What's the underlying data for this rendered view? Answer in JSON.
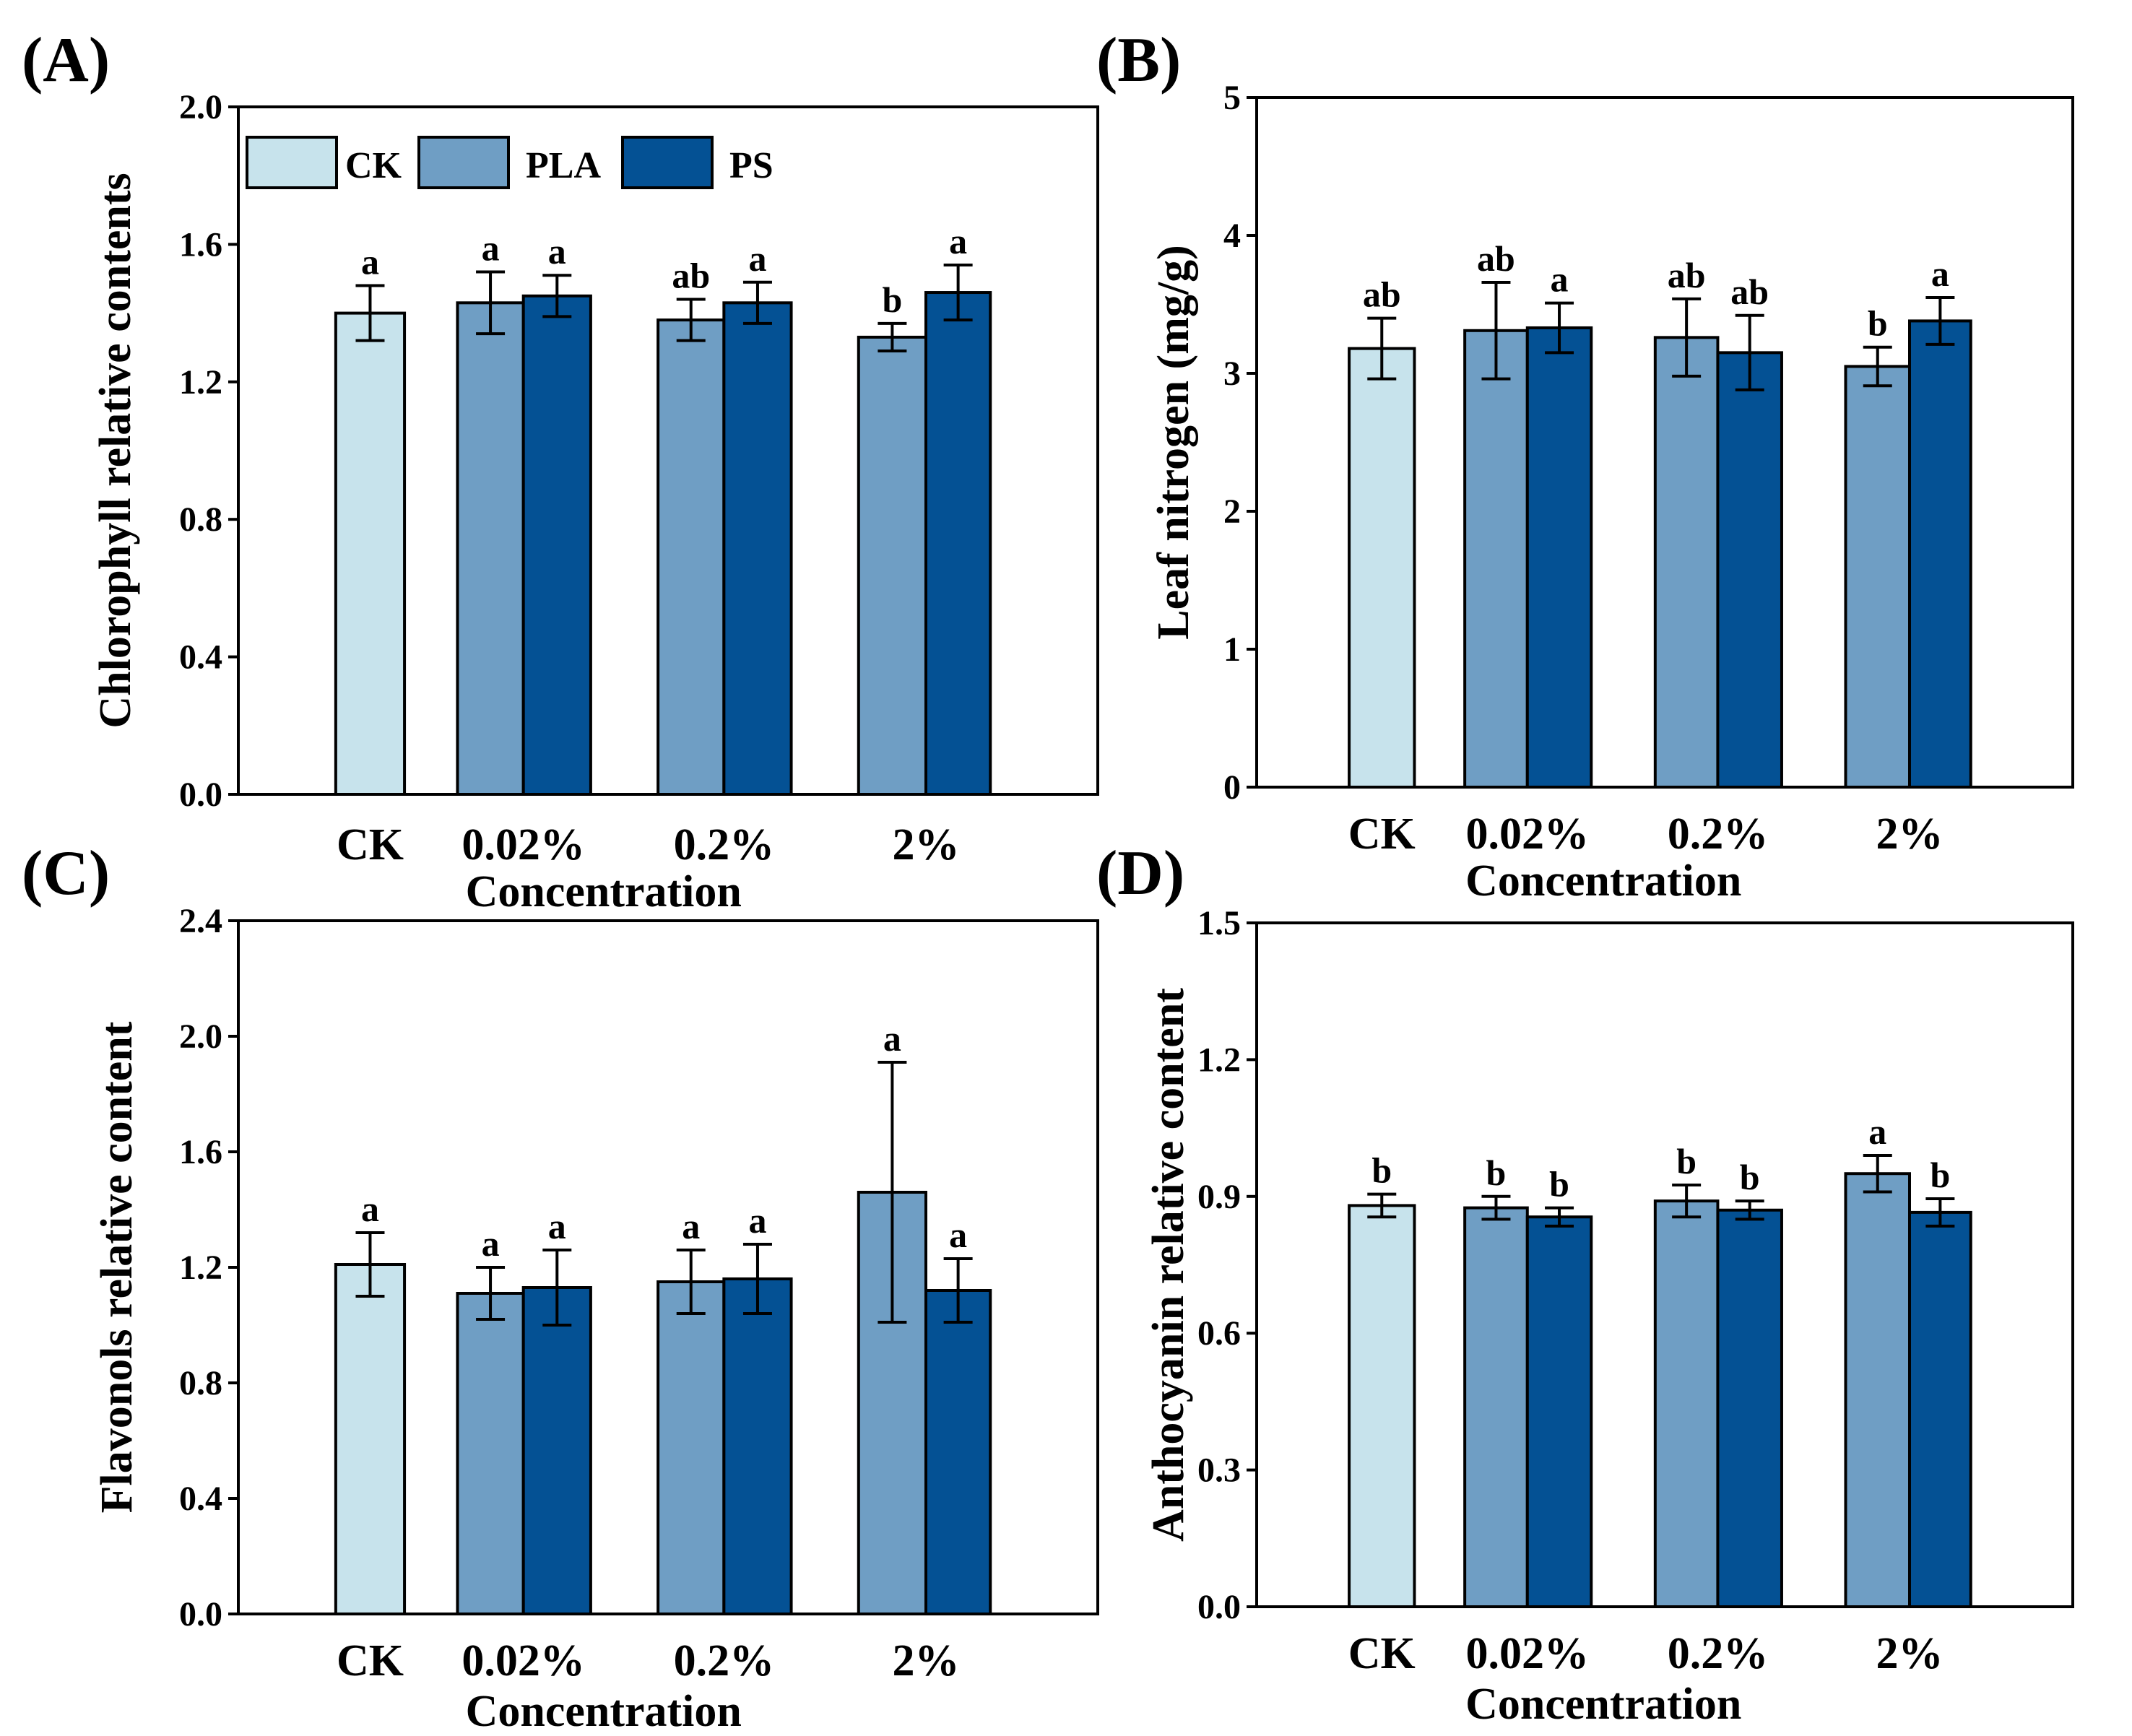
{
  "colors": {
    "CK": "#c7e3ec",
    "PLA": "#6f9ec4",
    "PS": "#045194"
  },
  "legend": {
    "entries": [
      "CK",
      "PLA",
      "PS"
    ]
  },
  "chart_data": [
    {
      "panel": "(A)",
      "type": "bar",
      "ylabel": "Chlorophyll relative contents",
      "xlabel": "Concentration",
      "ylim": [
        0.0,
        2.0
      ],
      "yticks": [
        "0.0",
        "0.4",
        "0.8",
        "1.2",
        "1.6",
        "2.0"
      ],
      "categories": [
        "CK",
        "0.02%",
        "0.2%",
        "2%"
      ],
      "legend_position": "top-left",
      "bars": [
        {
          "series": "CK",
          "category": "CK",
          "value": 1.4,
          "error": 0.08,
          "sig": "a"
        },
        {
          "series": "PLA",
          "category": "0.02%",
          "value": 1.43,
          "error": 0.09,
          "sig": "a"
        },
        {
          "series": "PS",
          "category": "0.02%",
          "value": 1.45,
          "error": 0.06,
          "sig": "a"
        },
        {
          "series": "PLA",
          "category": "0.2%",
          "value": 1.38,
          "error": 0.06,
          "sig": "ab"
        },
        {
          "series": "PS",
          "category": "0.2%",
          "value": 1.43,
          "error": 0.06,
          "sig": "a"
        },
        {
          "series": "PLA",
          "category": "2%",
          "value": 1.33,
          "error": 0.04,
          "sig": "b"
        },
        {
          "series": "PS",
          "category": "2%",
          "value": 1.46,
          "error": 0.08,
          "sig": "a"
        }
      ]
    },
    {
      "panel": "(B)",
      "type": "bar",
      "ylabel": "Leaf nitrogen  (mg/g)",
      "xlabel": "Concentration",
      "ylim": [
        0,
        5
      ],
      "yticks": [
        "0",
        "1",
        "2",
        "3",
        "4",
        "5"
      ],
      "categories": [
        "CK",
        "0.02%",
        "0.2%",
        "2%"
      ],
      "bars": [
        {
          "series": "CK",
          "category": "CK",
          "value": 3.18,
          "error": 0.22,
          "sig": "ab"
        },
        {
          "series": "PLA",
          "category": "0.02%",
          "value": 3.31,
          "error": 0.35,
          "sig": "ab"
        },
        {
          "series": "PS",
          "category": "0.02%",
          "value": 3.33,
          "error": 0.18,
          "sig": "a"
        },
        {
          "series": "PLA",
          "category": "0.2%",
          "value": 3.26,
          "error": 0.28,
          "sig": "ab"
        },
        {
          "series": "PS",
          "category": "0.2%",
          "value": 3.15,
          "error": 0.27,
          "sig": "ab"
        },
        {
          "series": "PLA",
          "category": "2%",
          "value": 3.05,
          "error": 0.14,
          "sig": "b"
        },
        {
          "series": "PS",
          "category": "2%",
          "value": 3.38,
          "error": 0.17,
          "sig": "a"
        }
      ]
    },
    {
      "panel": "(C)",
      "type": "bar",
      "ylabel": "Flavonols relative content",
      "xlabel": "Concentration",
      "ylim": [
        0.0,
        2.4
      ],
      "yticks": [
        "0.0",
        "0.4",
        "0.8",
        "1.2",
        "1.6",
        "2.0",
        "2.4"
      ],
      "categories": [
        "CK",
        "0.02%",
        "0.2%",
        "2%"
      ],
      "bars": [
        {
          "series": "CK",
          "category": "CK",
          "value": 1.21,
          "error": 0.11,
          "sig": "a"
        },
        {
          "series": "PLA",
          "category": "0.02%",
          "value": 1.11,
          "error": 0.09,
          "sig": "a"
        },
        {
          "series": "PS",
          "category": "0.02%",
          "value": 1.13,
          "error": 0.13,
          "sig": "a"
        },
        {
          "series": "PLA",
          "category": "0.2%",
          "value": 1.15,
          "error": 0.11,
          "sig": "a"
        },
        {
          "series": "PS",
          "category": "0.2%",
          "value": 1.16,
          "error": 0.12,
          "sig": "a"
        },
        {
          "series": "PLA",
          "category": "2%",
          "value": 1.46,
          "error": 0.45,
          "sig": "a"
        },
        {
          "series": "PS",
          "category": "2%",
          "value": 1.12,
          "error": 0.11,
          "sig": "a"
        }
      ]
    },
    {
      "panel": "(D)",
      "type": "bar",
      "ylabel": "Anthocyanin relative  content",
      "xlabel": "Concentration",
      "ylim": [
        0.0,
        1.5
      ],
      "yticks": [
        "0.0",
        "0.3",
        "0.6",
        "0.9",
        "1.2",
        "1.5"
      ],
      "categories": [
        "CK",
        "0.02%",
        "0.2%",
        "2%"
      ],
      "bars": [
        {
          "series": "CK",
          "category": "CK",
          "value": 0.88,
          "error": 0.025,
          "sig": "b"
        },
        {
          "series": "PLA",
          "category": "0.02%",
          "value": 0.875,
          "error": 0.025,
          "sig": "b"
        },
        {
          "series": "PS",
          "category": "0.02%",
          "value": 0.855,
          "error": 0.02,
          "sig": "b"
        },
        {
          "series": "PLA",
          "category": "0.2%",
          "value": 0.89,
          "error": 0.035,
          "sig": "b"
        },
        {
          "series": "PS",
          "category": "0.2%",
          "value": 0.87,
          "error": 0.02,
          "sig": "b"
        },
        {
          "series": "PLA",
          "category": "2%",
          "value": 0.95,
          "error": 0.04,
          "sig": "a"
        },
        {
          "series": "PS",
          "category": "2%",
          "value": 0.865,
          "error": 0.03,
          "sig": "b"
        }
      ]
    }
  ]
}
